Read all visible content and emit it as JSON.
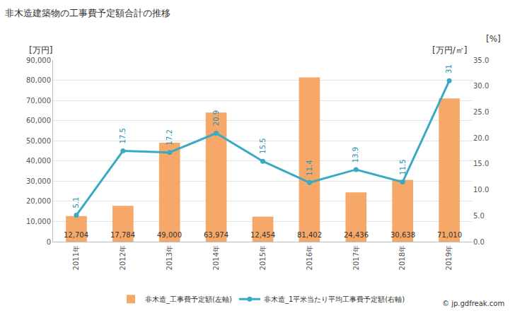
{
  "chart_data": {
    "type": "bar",
    "title": "非木造建築物の工事費予定額合計の推移",
    "y_label": "[万円]",
    "y2_label": "[万円/㎡]",
    "y2_unit": "[%]",
    "source": "© jp.gdfreak.com",
    "categories": [
      "2011年",
      "2012年",
      "2013年",
      "2014年",
      "2015年",
      "2016年",
      "2017年",
      "2018年",
      "2019年"
    ],
    "series": [
      {
        "name": "非木造_工事費予定額(左軸)",
        "type": "bar",
        "color": "#f5a867",
        "values": [
          12704,
          17784,
          49000,
          63974,
          12454,
          81402,
          24436,
          30638,
          71010
        ],
        "value_labels": [
          "12,704",
          "17,784",
          "49,000",
          "63,974",
          "12,454",
          "81,402",
          "24,436",
          "30,638",
          "71,010"
        ]
      },
      {
        "name": "非木造_1平米当たり平均工事費予定額(右軸)",
        "type": "line",
        "axis": "y2",
        "color": "#3aa9c4",
        "marker": "circle",
        "values": [
          5.1,
          17.5,
          17.2,
          20.9,
          15.5,
          11.4,
          13.9,
          11.5,
          31
        ]
      }
    ],
    "ylim": [
      0,
      90000
    ],
    "yticks": [
      0,
      {
        "value": 10000,
        "label": "10,000"
      },
      {
        "value": 20000,
        "label": "20,000"
      },
      {
        "value": 30000,
        "label": "30,000"
      },
      {
        "value": 40000,
        "label": "40,000"
      },
      {
        "value": 50000,
        "label": "50,000"
      },
      {
        "value": 60000,
        "label": "60,000"
      },
      {
        "value": 70000,
        "label": "70,000"
      },
      {
        "value": 80000,
        "label": "80,000"
      },
      {
        "value": 90000,
        "label": "90,000"
      }
    ],
    "y2lim": [
      0,
      35
    ],
    "y2ticks": [
      {
        "value": 0,
        "label": "0.0"
      },
      {
        "value": 5,
        "label": "5.0"
      },
      {
        "value": 10,
        "label": "10.0"
      },
      {
        "value": 15,
        "label": "15.0"
      },
      {
        "value": 20,
        "label": "20.0"
      },
      {
        "value": 25,
        "label": "25.0"
      },
      {
        "value": 30,
        "label": "30.0"
      },
      {
        "value": 35,
        "label": "35.0"
      }
    ],
    "grid": true,
    "legend": "bottom",
    "data_labels": true
  }
}
